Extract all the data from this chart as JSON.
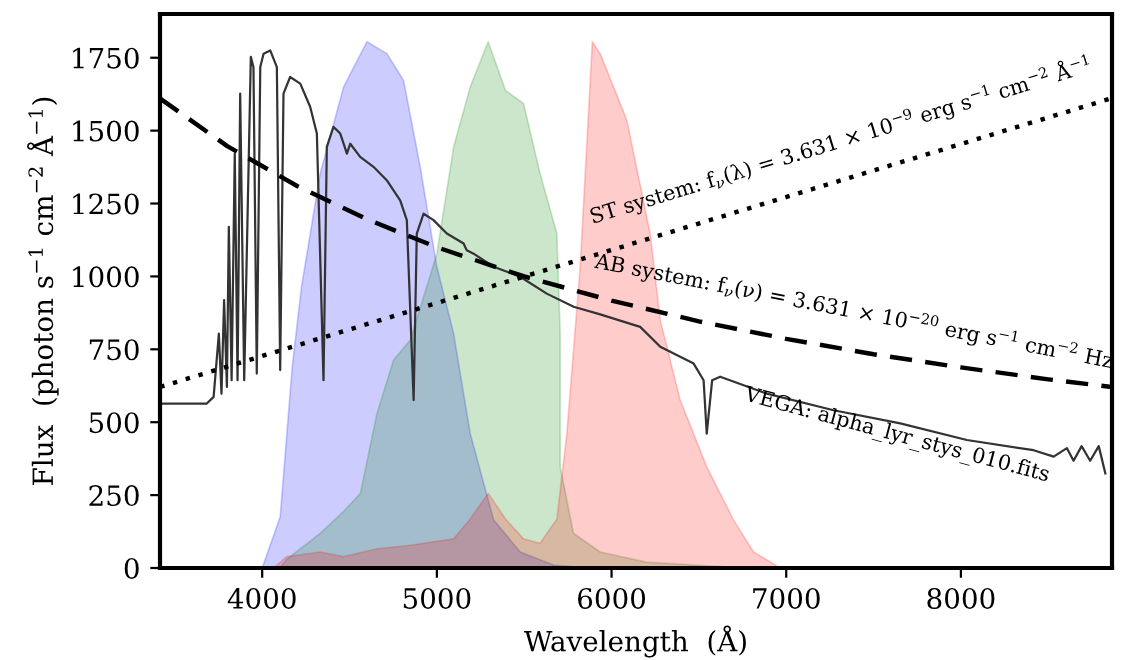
{
  "chart_data": {
    "type": "area",
    "xlabel": "Wavelength  (Å)",
    "ylabel": "Flux  (photon s$^{−1}$ cm$^{−2}$ Å$^{−1}$)",
    "xlim": [
      3415,
      8865
    ],
    "ylim": [
      0,
      1900
    ],
    "xticks": [
      4000,
      5000,
      6000,
      7000,
      8000
    ],
    "yticks": [
      0,
      250,
      500,
      750,
      1000,
      1250,
      1500,
      1750
    ],
    "grid": false,
    "legend": false,
    "series": [
      {
        "color": "#0000ff",
        "x": [
          4000,
          4103,
          4172,
          4225,
          4332,
          4466,
          4600,
          4714,
          4809,
          4905,
          5000,
          5096,
          5191,
          5325,
          5477,
          5668,
          5860
        ],
        "values": [
          0,
          176,
          690,
          965,
          1353,
          1650,
          1805,
          1764,
          1673,
          1375,
          1033,
          804,
          461,
          165,
          55,
          10,
          0
        ]
      },
      {
        "color": "#008000",
        "x": [
          4100,
          4141,
          4332,
          4466,
          4562,
          4657,
          4752,
          4848,
          5000,
          5096,
          5191,
          5294,
          5393,
          5496,
          5591,
          5687,
          5706,
          5706,
          5782,
          5935,
          6200,
          6770
        ],
        "values": [
          0,
          30,
          119,
          194,
          256,
          530,
          713,
          782,
          1078,
          1444,
          1650,
          1805,
          1638,
          1593,
          1353,
          1147,
          804,
          347,
          119,
          55,
          20,
          0
        ]
      },
      {
        "color": "#ff0000",
        "x": [
          4065,
          4141,
          4332,
          4466,
          4657,
          4848,
          5096,
          5191,
          5294,
          5393,
          5496,
          5591,
          5687,
          5744,
          5820,
          5890,
          5935,
          6088,
          6221,
          6279,
          6393,
          6545,
          6698,
          6813,
          6966
        ],
        "values": [
          0,
          39,
          55,
          39,
          66,
          78,
          100,
          168,
          256,
          168,
          100,
          85,
          168,
          460,
          1030,
          1805,
          1764,
          1535,
          1147,
          850,
          576,
          347,
          165,
          55,
          0
        ]
      },
      {
        "type": "line",
        "color": "#333333",
        "line_style": "solid",
        "x": [
          3416,
          3683,
          3722,
          3752,
          3767,
          3782,
          3798,
          3809,
          3825,
          3843,
          3859,
          3874,
          3897,
          3935,
          3950,
          3969,
          3989,
          4008,
          4046,
          4084,
          4103,
          4122,
          4160,
          4218,
          4275,
          4313,
          4351,
          4370,
          4408,
          4447,
          4485,
          4504,
          4561,
          4637,
          4713,
          4790,
          4828,
          4867,
          4885,
          4924,
          4981,
          5057,
          5153,
          5171,
          5210,
          5325,
          5477,
          5629,
          5783,
          5935,
          6164,
          6279,
          6470,
          6527,
          6545,
          6576,
          6622,
          6889,
          7271,
          7653,
          8034,
          8416,
          8531,
          8607,
          8645,
          8691,
          8740,
          8789,
          8827
        ],
        "values": [
          564,
          564,
          587,
          804,
          598,
          919,
          621,
          1170,
          644,
          1421,
          644,
          1627,
          644,
          1753,
          1718,
          667,
          1718,
          1764,
          1775,
          1718,
          679,
          1627,
          1684,
          1661,
          1581,
          1490,
          644,
          1444,
          1513,
          1490,
          1421,
          1455,
          1410,
          1376,
          1330,
          1261,
          1193,
          576,
          1147,
          1215,
          1193,
          1147,
          1113,
          1090,
          1078,
          1033,
          999,
          941,
          896,
          870,
          827,
          759,
          701,
          644,
          461,
          644,
          656,
          598,
          541,
          496,
          439,
          404,
          382,
          411,
          368,
          418,
          368,
          418,
          324
        ]
      },
      {
        "type": "line",
        "color": "#000000",
        "line_style": "dashed",
        "x": [
          3416,
          3800,
          4200,
          4600,
          5000,
          5500,
          6000,
          6500,
          7000,
          7500,
          8000,
          8500,
          8863
        ],
        "values": [
          1610,
          1447,
          1310,
          1196,
          1100,
          1000,
          917,
          846,
          786,
          733,
          688,
          647,
          621
        ]
      },
      {
        "type": "line",
        "color": "#000000",
        "line_style": "dotted",
        "x": [
          3416,
          8863
        ],
        "values": [
          621,
          1611
        ]
      }
    ],
    "annotations": [
      "ST system: f$_{ν}$(λ) = 3.631 × 10$^{−9}$ erg s$^{−1}$ cm$^{−2}$ Å$^{−1}$",
      "AB system: f$_{ν}$(ν) = 3.631 × 10$^{−20}$ erg s$^{−1}$ cm$^{−2}$ Hz",
      "VEGA: alpha_lyr_stys_010.fits"
    ]
  }
}
